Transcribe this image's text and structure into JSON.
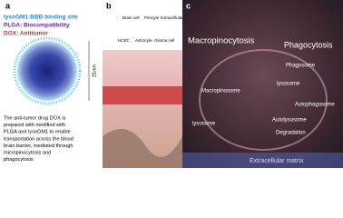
{
  "panel_a": {
    "label": "a",
    "legend": [
      "lysoGM1:BBB binding site",
      "PLGA: Biocompatibility",
      "DOX: Antitumor"
    ],
    "size_label": "21nm",
    "description": [
      "The anti-tumor drug DOX is",
      "prepared with modified with",
      "PLGA and lysoGM1 to enable",
      "transportation across the blood",
      "brain barrier, mediated through",
      "micropinocytosis and",
      "phagocytosis"
    ]
  },
  "panel_b": {
    "label": "b",
    "legend": [
      "Brain cell",
      "Pericyte",
      "Extracellular matrix",
      "HCEC",
      "Astrocyte",
      "Glioma cell"
    ]
  },
  "panel_c": {
    "label": "c",
    "labels": [
      "Macropinocytosis",
      "Phagocytosis",
      "Phagosome",
      "lysosome",
      "Macropinosome",
      "Autophagosome",
      "Autolysosome",
      "lysosome",
      "Degradation",
      "Extracellular matrix"
    ]
  }
}
